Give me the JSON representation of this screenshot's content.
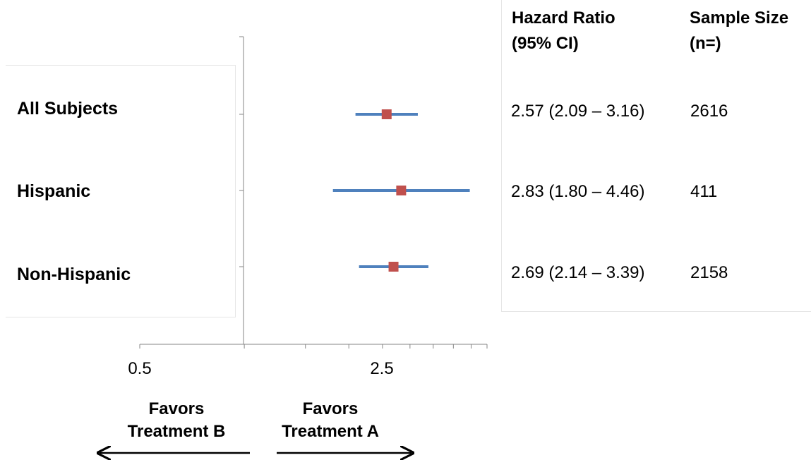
{
  "chart_data": {
    "type": "forest",
    "x_scale": "log",
    "xlim": [
      0.5,
      5.0
    ],
    "x_tick_labels": [
      "0.5",
      "2.5"
    ],
    "rows": [
      {
        "label": "All Subjects",
        "hr": 2.57,
        "ci_low": 2.09,
        "ci_high": 3.16,
        "hr_text": "2.57 (2.09 – 3.16)",
        "n": "2616"
      },
      {
        "label": "Hispanic",
        "hr": 2.83,
        "ci_low": 1.8,
        "ci_high": 4.46,
        "hr_text": "2.83 (1.80 – 4.46)",
        "n": "411"
      },
      {
        "label": "Non-Hispanic",
        "hr": 2.69,
        "ci_low": 2.14,
        "ci_high": 3.39,
        "hr_text": "2.69 (2.14 – 3.39)",
        "n": "2158"
      }
    ],
    "columns": {
      "hr_header": "Hazard Ratio\n(95% CI)",
      "n_header": "Sample Size\n(n=)"
    },
    "favors_left": "Favors\nTreatment B",
    "favors_right": "Favors\nTreatment A",
    "colors": {
      "ci_line": "#4f81bd",
      "marker": "#c0504d",
      "axis": "#868686"
    }
  }
}
